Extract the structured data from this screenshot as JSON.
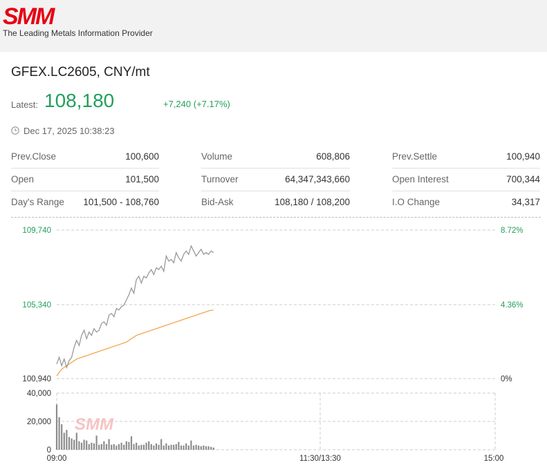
{
  "brand": {
    "logo_text": "SMM",
    "tagline": "The Leading Metals Information Provider",
    "logo_color": "#e60012"
  },
  "quote": {
    "symbol": "GFEX.LC2605, CNY/mt",
    "latest_label": "Latest:",
    "latest_value": "108,180",
    "change": "+7,240 (+7.17%)",
    "timestamp": "Dec 17, 2025 10:38:23",
    "up_color": "#22a05a"
  },
  "stats": {
    "col1": [
      {
        "label": "Prev.Close",
        "value": "100,600"
      },
      {
        "label": "Open",
        "value": "101,500"
      },
      {
        "label": "Day's Range",
        "value": "101,500 - 108,760"
      }
    ],
    "col2": [
      {
        "label": "Volume",
        "value": "608,806"
      },
      {
        "label": "Turnover",
        "value": "64,347,343,660"
      },
      {
        "label": "Bid-Ask",
        "value": "108,180 / 108,200"
      }
    ],
    "col3": [
      {
        "label": "Prev.Settle",
        "value": "100,940"
      },
      {
        "label": "Open Interest",
        "value": "700,344"
      },
      {
        "label": "I.O Change",
        "value": "34,317"
      }
    ]
  },
  "chart_data": {
    "type": "line",
    "price_axis": {
      "ticks": [
        "109,740",
        "105,340",
        "100,940"
      ],
      "ylim": [
        100940,
        109740
      ]
    },
    "pct_axis": {
      "ticks": [
        "8.72%",
        "4.36%",
        "0%"
      ]
    },
    "volume_axis": {
      "ticks": [
        "40,000",
        "20,000",
        "0"
      ],
      "ylim": [
        0,
        40000
      ]
    },
    "time_axis": {
      "ticks": [
        "09:00",
        "11:30/13:30",
        "15:00"
      ]
    },
    "watermark": "SMM",
    "series": [
      {
        "color": "#999999",
        "values": [
          101800,
          102200,
          101700,
          102100,
          101600,
          102000,
          102200,
          102800,
          103200,
          102900,
          103500,
          103800,
          103300,
          103700,
          103500,
          103900,
          103700,
          103800,
          104200,
          104300,
          104100,
          104700,
          104800,
          104600,
          105100,
          105000,
          105200,
          105300,
          105600,
          105900,
          106300,
          106000,
          106800,
          107000,
          106600,
          107000,
          106900,
          107200,
          107400,
          107100,
          107500,
          107400,
          107600,
          107300,
          108200,
          107900,
          108000,
          107800,
          108400,
          108100,
          107900,
          108300,
          108500,
          108300,
          108800,
          108500,
          108200,
          108400,
          108600,
          108300,
          108400,
          108300,
          108500,
          108400
        ]
      },
      {
        "color": "#f0a040",
        "values": [
          101100,
          101300,
          101500,
          101600,
          101700,
          101800,
          101900,
          102000,
          102100,
          102150,
          102200,
          102250,
          102300,
          102350,
          102400,
          102450,
          102500,
          102550,
          102600,
          102650,
          102700,
          102750,
          102800,
          102850,
          102900,
          102950,
          103000,
          103050,
          103100,
          103200,
          103300,
          103400,
          103500,
          103550,
          103600,
          103650,
          103700,
          103750,
          103800,
          103850,
          103900,
          103950,
          104000,
          104050,
          104100,
          104150,
          104200,
          104250,
          104300,
          104350,
          104400,
          104450,
          104500,
          104550,
          104600,
          104650,
          104700,
          104750,
          104800,
          104850,
          104900,
          104950,
          104980,
          105000
        ]
      }
    ],
    "volume": [
      32000,
      23000,
      18000,
      12000,
      14000,
      9000,
      8000,
      7000,
      12000,
      6000,
      5000,
      7000,
      6500,
      4000,
      5000,
      4500,
      10000,
      3500,
      4000,
      6000,
      4000,
      7500,
      3500,
      4000,
      3000,
      4000,
      5000,
      3500,
      6000,
      5500,
      9500,
      4000,
      5000,
      3000,
      3500,
      3500,
      5000,
      6000,
      4000,
      3000,
      4500,
      3500,
      7500,
      3000,
      4500,
      3000,
      3500,
      3500,
      4000,
      5500,
      3000,
      3000,
      4500,
      3000,
      6500,
      3000,
      3500,
      3000,
      2500,
      3000,
      2500,
      2500,
      2000,
      1500
    ]
  }
}
